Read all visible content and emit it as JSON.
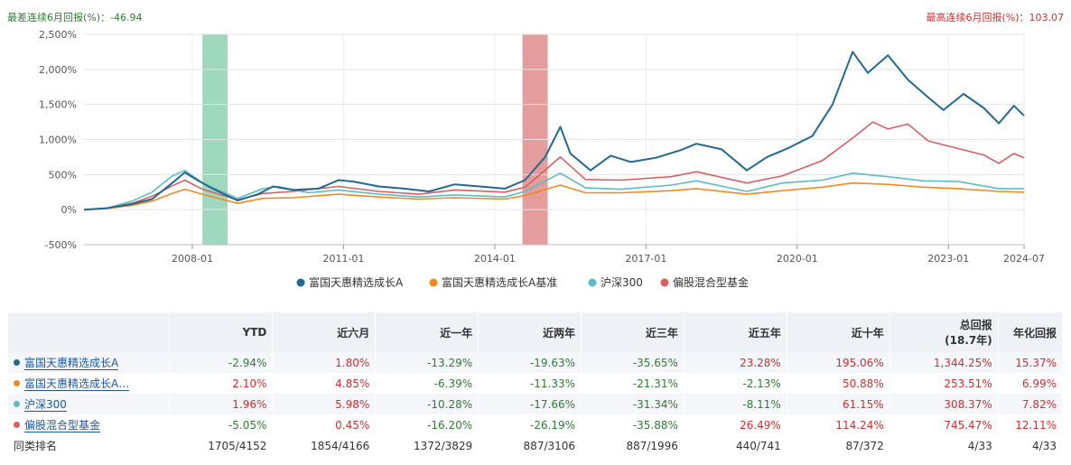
{
  "header": {
    "worst_label": "最差连续6月回报(%)：-46.94",
    "best_label": "最高连续6月回报(%)：103.07"
  },
  "colors": {
    "fund": "#1f6a91",
    "benchmark": "#f08a1c",
    "hs300": "#5bbcc4",
    "peer": "#d95f61",
    "worst_band": "#7ecca7",
    "best_band": "#dc7b7b",
    "positive": "#d32f2f",
    "negative": "#2e7d32"
  },
  "chart_data": {
    "type": "line",
    "y_ticks": [
      "2,500%",
      "2,000%",
      "1,500%",
      "1,000%",
      "500%",
      "0%",
      "-500%"
    ],
    "x_ticks": [
      "2008-01",
      "2011-01",
      "2014-01",
      "2017-01",
      "2020-01",
      "2023-01",
      "2024-07"
    ],
    "ylim": [
      -500,
      2500
    ],
    "xlim": [
      2005.85,
      2024.5
    ],
    "grid": true,
    "legend_position": "bottom",
    "shaded_periods": [
      {
        "name": "worst-6m",
        "start": 2008.2,
        "end": 2008.7
      },
      {
        "name": "best-6m",
        "start": 2014.55,
        "end": 2015.05
      }
    ],
    "series": [
      {
        "name": "富国天惠精选成长A",
        "color_key": "fund",
        "points": [
          [
            2005.85,
            0
          ],
          [
            2006.3,
            20
          ],
          [
            2006.8,
            80
          ],
          [
            2007.2,
            150
          ],
          [
            2007.6,
            380
          ],
          [
            2007.85,
            530
          ],
          [
            2008.1,
            420
          ],
          [
            2008.4,
            300
          ],
          [
            2008.9,
            130
          ],
          [
            2009.3,
            220
          ],
          [
            2009.6,
            330
          ],
          [
            2010.0,
            280
          ],
          [
            2010.5,
            300
          ],
          [
            2010.9,
            420
          ],
          [
            2011.2,
            400
          ],
          [
            2011.7,
            330
          ],
          [
            2012.2,
            300
          ],
          [
            2012.7,
            260
          ],
          [
            2013.2,
            360
          ],
          [
            2013.7,
            330
          ],
          [
            2014.2,
            300
          ],
          [
            2014.6,
            420
          ],
          [
            2015.0,
            750
          ],
          [
            2015.3,
            1180
          ],
          [
            2015.5,
            800
          ],
          [
            2015.9,
            560
          ],
          [
            2016.3,
            770
          ],
          [
            2016.7,
            680
          ],
          [
            2017.2,
            740
          ],
          [
            2017.7,
            850
          ],
          [
            2018.0,
            940
          ],
          [
            2018.5,
            860
          ],
          [
            2019.0,
            560
          ],
          [
            2019.4,
            750
          ],
          [
            2019.8,
            870
          ],
          [
            2020.3,
            1050
          ],
          [
            2020.7,
            1500
          ],
          [
            2021.1,
            2250
          ],
          [
            2021.4,
            1950
          ],
          [
            2021.8,
            2200
          ],
          [
            2022.2,
            1850
          ],
          [
            2022.6,
            1600
          ],
          [
            2022.9,
            1420
          ],
          [
            2023.3,
            1650
          ],
          [
            2023.7,
            1450
          ],
          [
            2024.0,
            1230
          ],
          [
            2024.3,
            1480
          ],
          [
            2024.5,
            1340
          ]
        ]
      },
      {
        "name": "富国天惠精选成长A基准",
        "color_key": "benchmark",
        "points": [
          [
            2005.85,
            0
          ],
          [
            2006.3,
            15
          ],
          [
            2006.8,
            60
          ],
          [
            2007.2,
            120
          ],
          [
            2007.6,
            230
          ],
          [
            2007.85,
            290
          ],
          [
            2008.3,
            200
          ],
          [
            2008.9,
            90
          ],
          [
            2009.4,
            160
          ],
          [
            2010.0,
            170
          ],
          [
            2010.9,
            220
          ],
          [
            2011.7,
            180
          ],
          [
            2012.5,
            150
          ],
          [
            2013.2,
            170
          ],
          [
            2014.2,
            150
          ],
          [
            2014.6,
            200
          ],
          [
            2015.3,
            350
          ],
          [
            2015.8,
            240
          ],
          [
            2016.5,
            240
          ],
          [
            2017.5,
            270
          ],
          [
            2018.0,
            300
          ],
          [
            2019.0,
            220
          ],
          [
            2019.7,
            270
          ],
          [
            2020.5,
            320
          ],
          [
            2021.1,
            380
          ],
          [
            2021.8,
            360
          ],
          [
            2022.5,
            320
          ],
          [
            2023.2,
            300
          ],
          [
            2024.0,
            260
          ],
          [
            2024.5,
            250
          ]
        ]
      },
      {
        "name": "沪深300",
        "color_key": "hs300",
        "points": [
          [
            2005.85,
            0
          ],
          [
            2006.3,
            20
          ],
          [
            2006.8,
            120
          ],
          [
            2007.2,
            250
          ],
          [
            2007.6,
            480
          ],
          [
            2007.85,
            560
          ],
          [
            2008.2,
            380
          ],
          [
            2008.9,
            160
          ],
          [
            2009.4,
            300
          ],
          [
            2009.7,
            330
          ],
          [
            2010.3,
            240
          ],
          [
            2010.9,
            280
          ],
          [
            2011.7,
            220
          ],
          [
            2012.5,
            180
          ],
          [
            2013.2,
            210
          ],
          [
            2014.2,
            180
          ],
          [
            2014.6,
            260
          ],
          [
            2015.3,
            520
          ],
          [
            2015.8,
            310
          ],
          [
            2016.5,
            290
          ],
          [
            2017.5,
            350
          ],
          [
            2018.0,
            410
          ],
          [
            2019.0,
            260
          ],
          [
            2019.7,
            380
          ],
          [
            2020.5,
            420
          ],
          [
            2021.1,
            520
          ],
          [
            2021.8,
            470
          ],
          [
            2022.5,
            410
          ],
          [
            2023.2,
            400
          ],
          [
            2024.0,
            300
          ],
          [
            2024.5,
            300
          ]
        ]
      },
      {
        "name": "偏股混合型基金",
        "color_key": "peer",
        "points": [
          [
            2005.85,
            0
          ],
          [
            2006.3,
            20
          ],
          [
            2006.8,
            90
          ],
          [
            2007.2,
            190
          ],
          [
            2007.6,
            340
          ],
          [
            2007.85,
            420
          ],
          [
            2008.2,
            290
          ],
          [
            2008.9,
            140
          ],
          [
            2009.4,
            230
          ],
          [
            2010.0,
            260
          ],
          [
            2010.9,
            330
          ],
          [
            2011.7,
            260
          ],
          [
            2012.5,
            220
          ],
          [
            2013.2,
            280
          ],
          [
            2014.2,
            250
          ],
          [
            2014.6,
            320
          ],
          [
            2015.3,
            750
          ],
          [
            2015.8,
            430
          ],
          [
            2016.5,
            420
          ],
          [
            2017.5,
            470
          ],
          [
            2018.0,
            540
          ],
          [
            2019.0,
            380
          ],
          [
            2019.7,
            480
          ],
          [
            2020.5,
            700
          ],
          [
            2021.1,
            1020
          ],
          [
            2021.5,
            1250
          ],
          [
            2021.8,
            1150
          ],
          [
            2022.2,
            1220
          ],
          [
            2022.6,
            980
          ],
          [
            2023.2,
            870
          ],
          [
            2023.7,
            780
          ],
          [
            2024.0,
            660
          ],
          [
            2024.3,
            800
          ],
          [
            2024.5,
            740
          ]
        ]
      }
    ]
  },
  "table": {
    "headers": [
      "",
      "YTD",
      "近六月",
      "近一年",
      "近两年",
      "近三年",
      "近五年",
      "近十年",
      "总回报",
      "(18.7年)",
      "年化回报"
    ],
    "rows": [
      {
        "name": "富国天惠精选成长A",
        "color_key": "fund",
        "values": [
          "-2.94%",
          "1.80%",
          "-13.29%",
          "-19.63%",
          "-35.65%",
          "23.28%",
          "195.06%",
          "1,344.25%",
          "15.37%"
        ]
      },
      {
        "name": "富国天惠精选成长A…",
        "color_key": "benchmark",
        "values": [
          "2.10%",
          "4.85%",
          "-6.39%",
          "-11.33%",
          "-21.31%",
          "-2.13%",
          "50.88%",
          "253.51%",
          "6.99%"
        ]
      },
      {
        "name": "沪深300",
        "color_key": "hs300",
        "values": [
          "1.96%",
          "5.98%",
          "-10.28%",
          "-17.66%",
          "-31.34%",
          "-8.11%",
          "61.15%",
          "308.37%",
          "7.82%"
        ]
      },
      {
        "name": "偏股混合型基金",
        "color_key": "peer",
        "values": [
          "-5.05%",
          "0.45%",
          "-16.20%",
          "-26.19%",
          "-35.88%",
          "26.49%",
          "114.24%",
          "745.47%",
          "12.11%"
        ]
      }
    ],
    "rank_row": {
      "name": "同类排名",
      "values": [
        "1705/4152",
        "1854/4166",
        "1372/3829",
        "887/3106",
        "887/1996",
        "440/741",
        "87/372",
        "4/33",
        "4/33"
      ]
    }
  }
}
